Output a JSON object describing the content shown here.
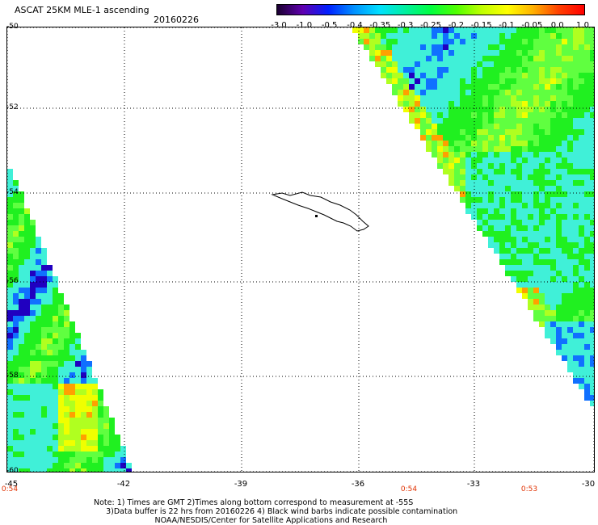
{
  "header": {
    "title": "ASCAT 25KM MLE-1 ascending",
    "date": "20160226"
  },
  "colorbar": {
    "labels": [
      "-3.0",
      "-1.0",
      "-0.5",
      "-0.4",
      "-0.35",
      "-0.3",
      "-0.25",
      "-0.2",
      "-0.15",
      "-0.1",
      "-0.05",
      "0.0",
      "1.0"
    ],
    "colors": [
      "#1a0030",
      "#6000b0",
      "#0020ff",
      "#0090ff",
      "#00e0ff",
      "#00f0a0",
      "#00ff40",
      "#50ff00",
      "#c0ff00",
      "#ffff00",
      "#ffb000",
      "#ff4000",
      "#ff0000"
    ]
  },
  "map": {
    "lat_labels": [
      "-50",
      "-52",
      "-54",
      "-56",
      "-58",
      "-60"
    ],
    "lon_labels": [
      "-45",
      "-42",
      "-39",
      "-36",
      "-33",
      "-30"
    ],
    "time_labels": [
      "0:54",
      "0:54",
      "0:53"
    ],
    "swath_colors": {
      "cyan": "#40f0d8",
      "green": "#20f020",
      "light_green": "#60ff40",
      "yellow_green": "#b0ff20",
      "yellow": "#f0ff00",
      "orange": "#ffa000",
      "blue": "#1070ff",
      "dark_blue": "#2000c0"
    }
  },
  "footer": {
    "line1": "Note: 1) Times are GMT 2)Times along bottom correspond to measurement at -55S",
    "line2": "3)Data buffer is 22 hrs from 20160226 4) Black wind barbs indicate possible contamination",
    "line3": "NOAA/NESDIS/Center for Satellite Applications and Research"
  }
}
